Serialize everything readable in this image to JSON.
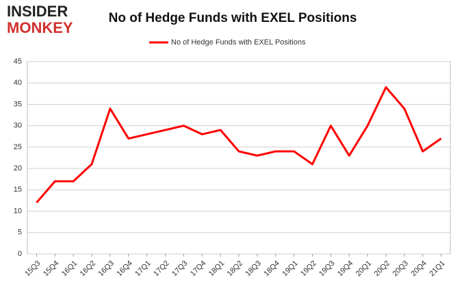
{
  "logo": {
    "top": "INSIDER",
    "bottom": "MONKEY"
  },
  "chart_data": {
    "type": "line",
    "title": "No of Hedge Funds with EXEL Positions",
    "categories": [
      "15Q3",
      "15Q4",
      "16Q1",
      "16Q2",
      "16Q3",
      "16Q4",
      "17Q1",
      "17Q2",
      "17Q3",
      "17Q4",
      "18Q1",
      "18Q2",
      "18Q3",
      "18Q4",
      "19Q1",
      "19Q2",
      "19Q3",
      "19Q4",
      "20Q1",
      "20Q2",
      "20Q3",
      "20Q4",
      "21Q1"
    ],
    "series": [
      {
        "name": "No of Hedge Funds with EXEL Positions",
        "color": "#ff0000",
        "values": [
          12,
          17,
          17,
          21,
          34,
          27,
          28,
          29,
          30,
          28,
          29,
          24,
          23,
          24,
          24,
          21,
          30,
          23,
          30,
          39,
          34,
          24,
          27
        ]
      }
    ],
    "ylim": [
      0,
      45
    ],
    "yticks": [
      0,
      5,
      10,
      15,
      20,
      25,
      30,
      35,
      40,
      45
    ],
    "grid": true,
    "legend": "top"
  }
}
